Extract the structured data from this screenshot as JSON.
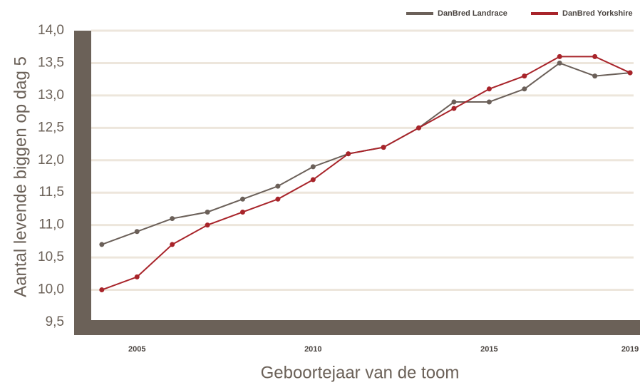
{
  "chart_data": {
    "type": "line",
    "x_label": "Geboortejaar van de toom",
    "y_label": "Aantal levende biggen op dag 5",
    "x": [
      2004,
      2005,
      2006,
      2007,
      2008,
      2009,
      2010,
      2011,
      2012,
      2013,
      2014,
      2015,
      2016,
      2017,
      2018,
      2019
    ],
    "series": [
      {
        "name": "DanBred Landrace",
        "color": "#6b6059",
        "values": [
          10.7,
          10.9,
          11.1,
          11.2,
          11.4,
          11.6,
          11.9,
          12.1,
          12.2,
          12.5,
          12.9,
          12.9,
          13.1,
          13.5,
          13.3,
          13.35
        ]
      },
      {
        "name": "DanBred Yorkshire",
        "color": "#a8242a",
        "values": [
          10.0,
          10.2,
          10.7,
          11.0,
          11.2,
          11.4,
          11.7,
          12.1,
          12.2,
          12.5,
          12.8,
          13.1,
          13.3,
          13.6,
          13.6,
          13.35
        ]
      }
    ],
    "xlim": [
      2003.7,
      2019.1
    ],
    "xticks": [
      2005,
      2010,
      2015,
      2019
    ],
    "ylim": [
      9.5,
      14.0
    ],
    "yticks": [
      {
        "value": 9.5,
        "label": "9,5"
      },
      {
        "value": 10,
        "label": "10,0"
      },
      {
        "value": 10.5,
        "label": "10,5"
      },
      {
        "value": 11,
        "label": "11,0"
      },
      {
        "value": 11.5,
        "label": "11,5"
      },
      {
        "value": 12,
        "label": "12,0"
      },
      {
        "value": 12.5,
        "label": "12,5"
      },
      {
        "value": 13,
        "label": "13,0"
      },
      {
        "value": 13.5,
        "label": "13,5"
      },
      {
        "value": 14,
        "label": "14,0"
      }
    ],
    "grid": true,
    "legend": "top-right"
  }
}
